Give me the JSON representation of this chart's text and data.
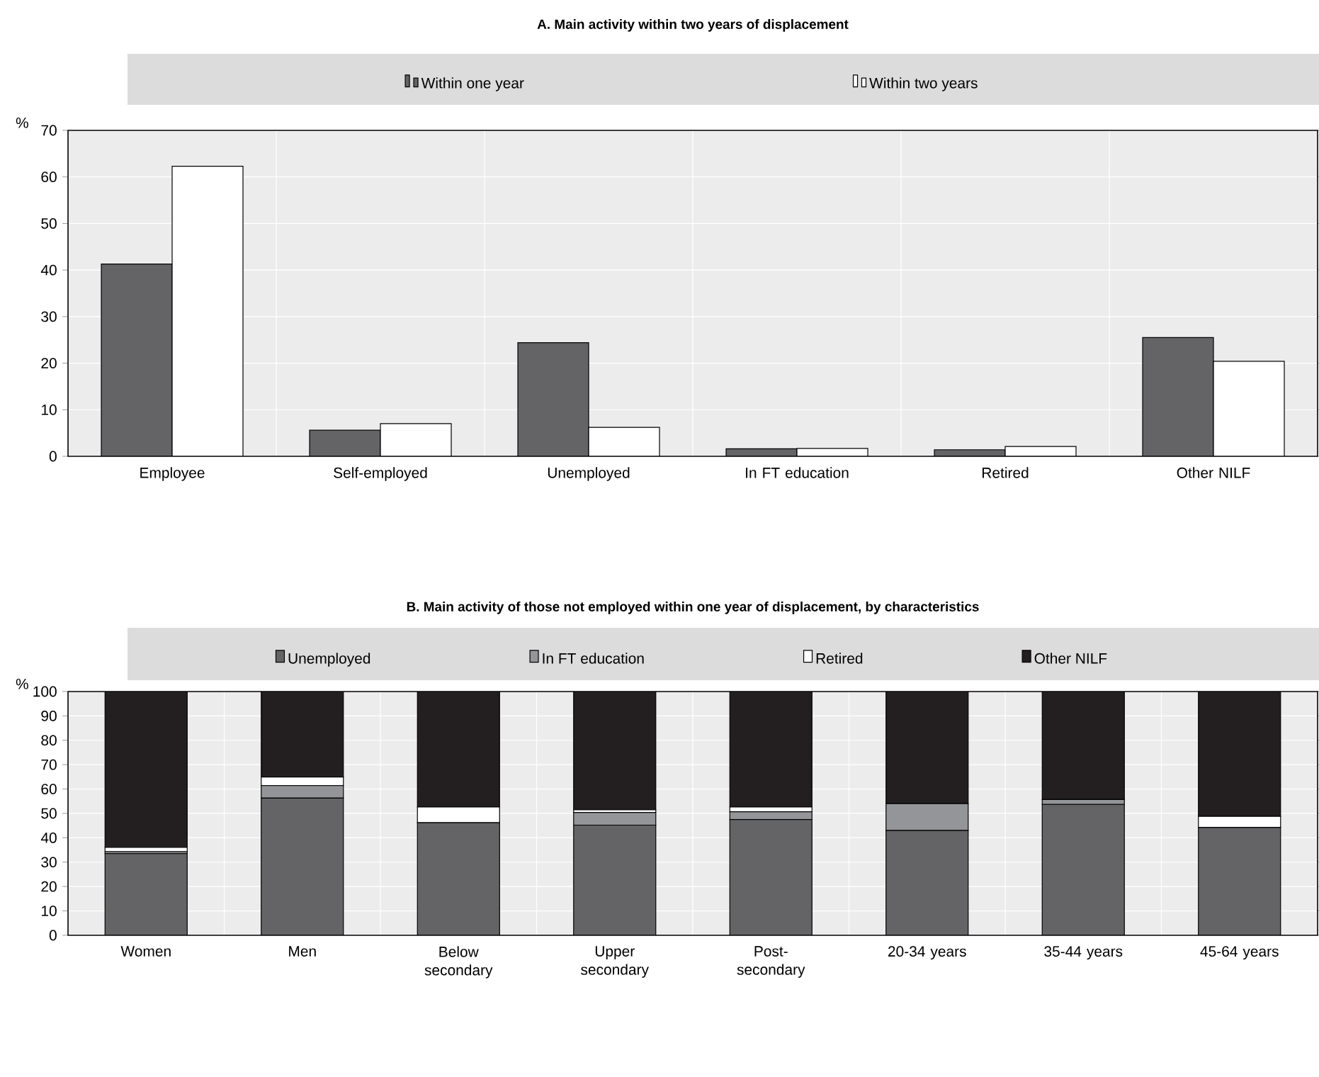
{
  "chart_data": [
    {
      "type": "bar",
      "title": "A. Main activity within two years of displacement",
      "ylabel": "%",
      "categories": [
        "Employee",
        "Self-employed",
        "Unemployed",
        "In FT education",
        "Retired",
        "Other NILF"
      ],
      "series": [
        {
          "name": "Within one year",
          "color": "#646466",
          "values": [
            41.3,
            5.6,
            24.4,
            1.6,
            1.4,
            25.5
          ]
        },
        {
          "name": "Within two years",
          "color": "#ffffff",
          "values": [
            62.3,
            7.0,
            6.2,
            1.7,
            2.1,
            20.4
          ]
        }
      ],
      "ylim": [
        0,
        70
      ],
      "yticks": [
        0,
        10,
        20,
        30,
        40,
        50,
        60,
        70
      ],
      "grid": true,
      "legend": "top"
    },
    {
      "type": "bar",
      "title": "B. Main activity of those not employed within one year of displacement, by characteristics",
      "ylabel": "%",
      "categories": [
        "Women",
        "Men",
        "Below secondary",
        "Upper secondary",
        "Post-secondary",
        "20-34 years",
        "35-44 years",
        "45-64 years"
      ],
      "stacked": true,
      "series": [
        {
          "name": "Unemployed",
          "color": "#646466",
          "values": [
            33.5,
            56.3,
            46.2,
            45.2,
            47.5,
            43.0,
            53.7,
            44.2
          ]
        },
        {
          "name": "In FT education",
          "color": "#949598",
          "values": [
            0.8,
            5.1,
            0,
            5.2,
            3.2,
            11.0,
            2.0,
            0
          ]
        },
        {
          "name": "Retired",
          "color": "#ffffff",
          "values": [
            1.8,
            3.5,
            6.4,
            1.1,
            1.9,
            0,
            0,
            4.6
          ]
        },
        {
          "name": "Other NILF",
          "color": "#231f20",
          "values": [
            63.9,
            35.1,
            47.4,
            48.5,
            47.4,
            46.0,
            44.3,
            51.2
          ]
        }
      ],
      "ylim": [
        0,
        100
      ],
      "yticks": [
        0,
        10,
        20,
        30,
        40,
        50,
        60,
        70,
        80,
        90,
        100
      ],
      "grid": true,
      "legend": "top"
    }
  ]
}
